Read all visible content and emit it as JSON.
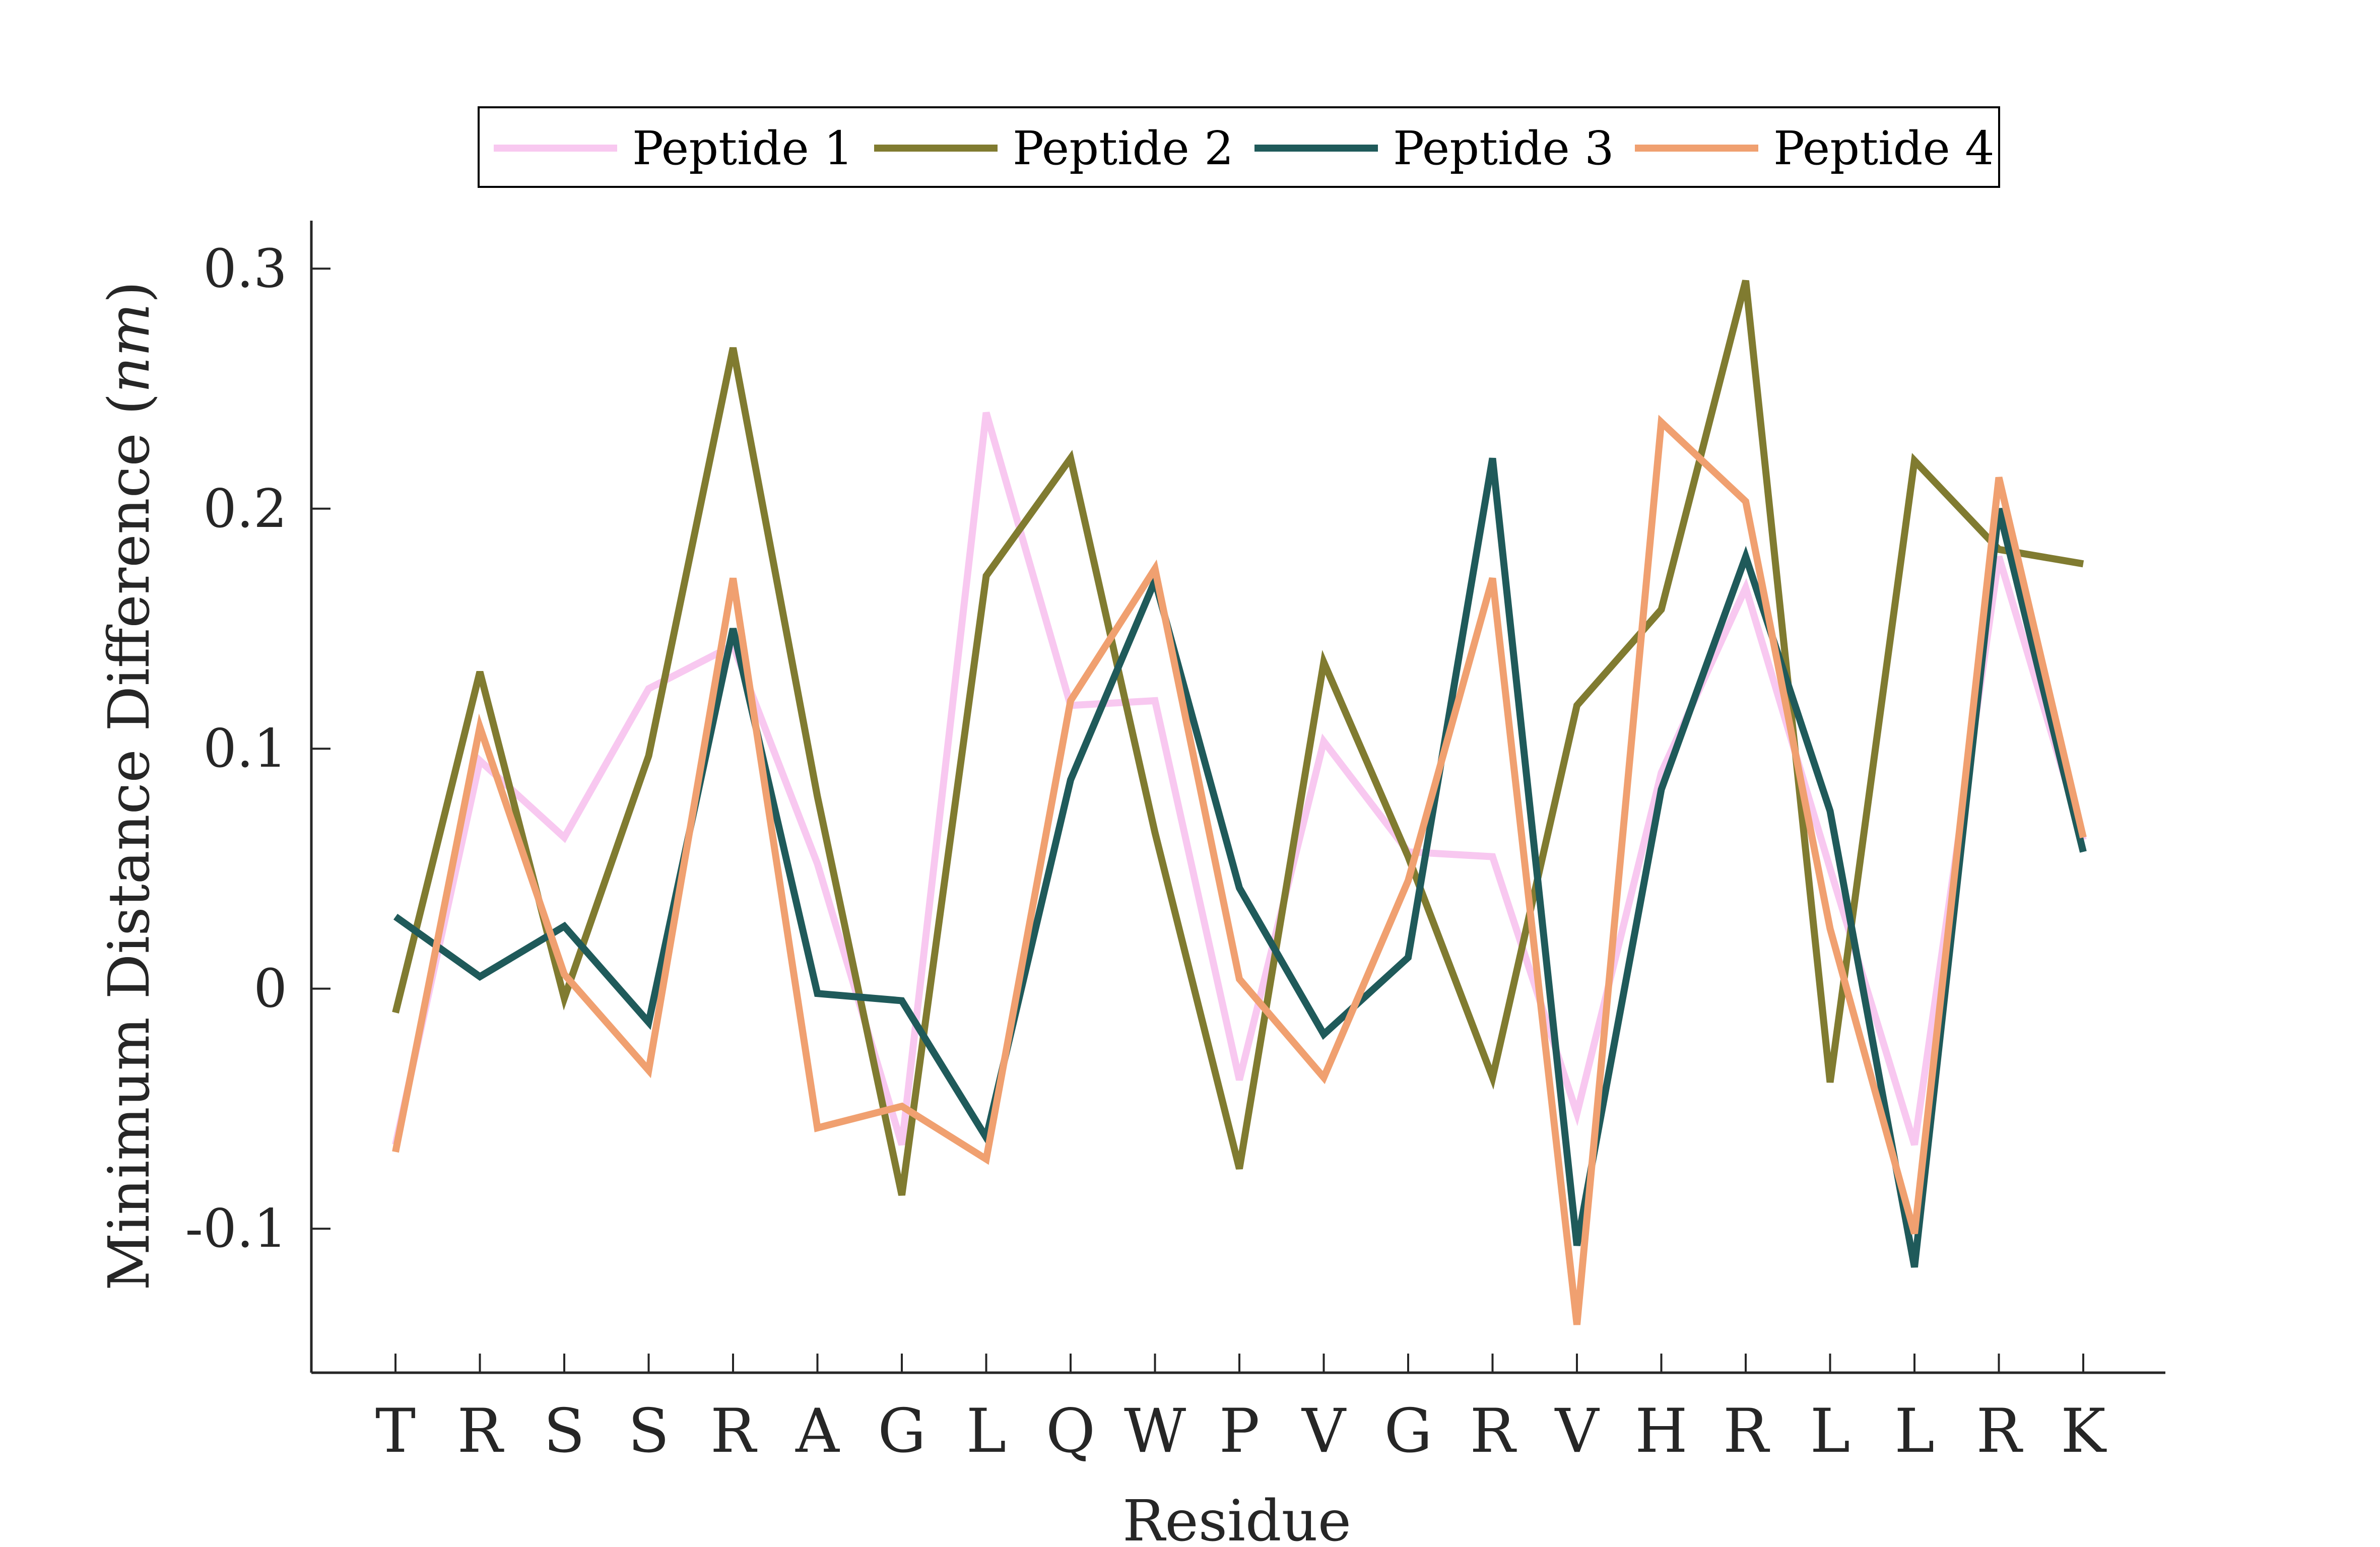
{
  "chart_data": {
    "type": "line",
    "title": "",
    "xlabel": "Residue",
    "ylabel": "Minimum Distance Difference (",
    "ylabel_unit": "nm",
    "ylabel_close": ")",
    "categories": [
      "T",
      "R",
      "S",
      "S",
      "R",
      "A",
      "G",
      "L",
      "Q",
      "W",
      "P",
      "V",
      "G",
      "R",
      "V",
      "H",
      "R",
      "L",
      "L",
      "R",
      "K"
    ],
    "ylim": [
      -0.16,
      0.32
    ],
    "yticks": [
      -0.1,
      0,
      0.1,
      0.2,
      0.3
    ],
    "ytick_labels": [
      "-0.1",
      "0",
      "0.1",
      "0.2",
      "0.3"
    ],
    "grid": false,
    "legend_position": "top-center",
    "series": [
      {
        "name": "Peptide 1",
        "color": "#f8c8f0",
        "values": [
          -0.065,
          0.095,
          0.063,
          0.125,
          0.143,
          0.052,
          -0.065,
          0.24,
          0.118,
          0.12,
          -0.038,
          0.103,
          0.057,
          0.055,
          -0.052,
          0.09,
          0.167,
          0.05,
          -0.065,
          0.18,
          0.062
        ]
      },
      {
        "name": "Peptide 2",
        "color": "#807b30",
        "values": [
          -0.01,
          0.132,
          -0.004,
          0.097,
          0.267,
          0.08,
          -0.086,
          0.172,
          0.221,
          0.065,
          -0.075,
          0.136,
          0.055,
          -0.037,
          0.118,
          0.158,
          0.295,
          -0.039,
          0.22,
          0.183,
          0.177
        ]
      },
      {
        "name": "Peptide 3",
        "color": "#1f5a5a",
        "values": [
          0.03,
          0.005,
          0.026,
          -0.014,
          0.15,
          -0.002,
          -0.005,
          -0.062,
          0.087,
          0.17,
          0.042,
          -0.019,
          0.013,
          0.221,
          -0.107,
          0.083,
          0.18,
          0.074,
          -0.116,
          0.2,
          0.057
        ]
      },
      {
        "name": "Peptide 4",
        "color": "#f0a070",
        "values": [
          -0.068,
          0.109,
          0.006,
          -0.034,
          0.171,
          -0.058,
          -0.049,
          -0.071,
          0.12,
          0.175,
          0.004,
          -0.037,
          0.045,
          0.171,
          -0.14,
          0.236,
          0.203,
          0.025,
          -0.102,
          0.213,
          0.063
        ]
      }
    ]
  }
}
